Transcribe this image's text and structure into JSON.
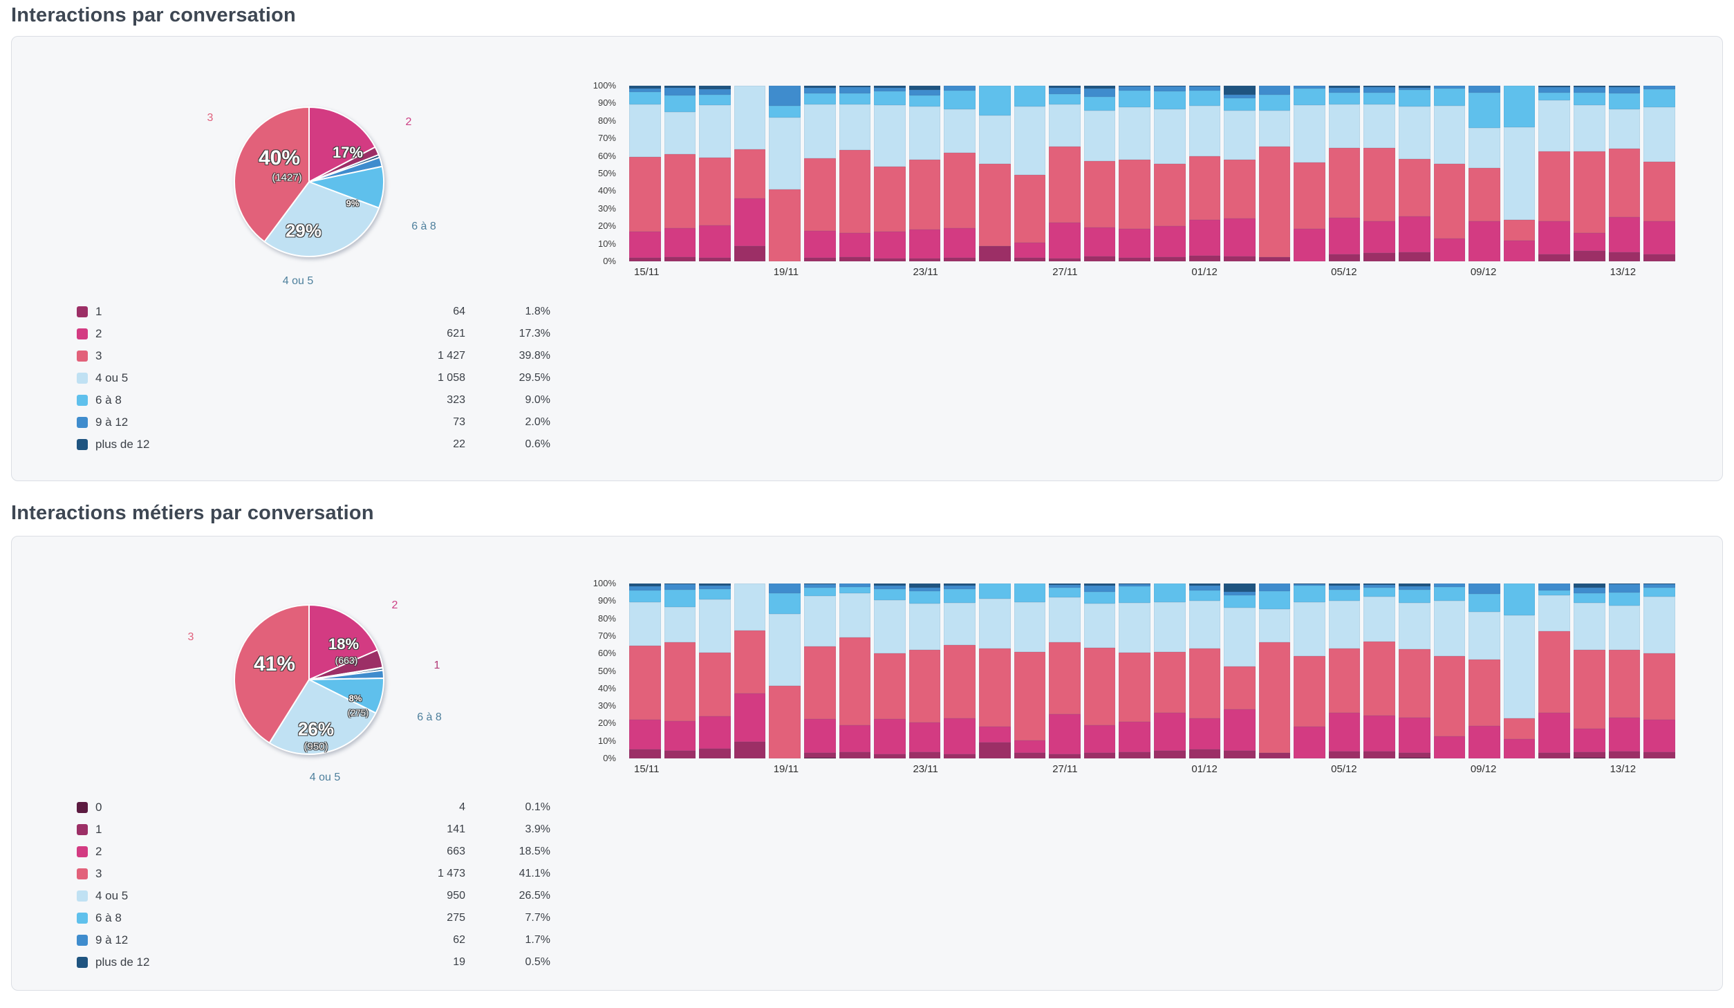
{
  "colors": {
    "categories": {
      "0": "#5c1b41",
      "1": "#9c2f66",
      "2": "#d33b82",
      "3": "#e2617a",
      "4 ou 5": "#c0e1f3",
      "6 à 8": "#5fc0ec",
      "9 à 12": "#3f8ccd",
      "plus de 12": "#1f5480"
    },
    "card_bg": "#f6f7f9",
    "card_border": "#dbdee4",
    "title_text": "#3e4753",
    "outer_label_blue": "#4d7f9c"
  },
  "axis": {
    "y_ticks": [
      "0%",
      "10%",
      "20%",
      "30%",
      "40%",
      "50%",
      "60%",
      "70%",
      "80%",
      "90%",
      "100%"
    ],
    "x_tick_every": 4
  },
  "panels": [
    {
      "title": "Interactions par conversation",
      "pie": {
        "inner_labels": [
          "40%",
          "(1427)",
          "17%",
          "9%",
          "29%"
        ],
        "outer_labels": [
          {
            "text": "3",
            "color": "#e0607c"
          },
          {
            "text": "2",
            "color": "#cc3e83"
          },
          {
            "text": "6 à 8",
            "color": "#4d7f9c"
          },
          {
            "text": "4 ou 5",
            "color": "#4d7f9c"
          }
        ]
      },
      "legend": {
        "rows": [
          {
            "label": "1",
            "value": "64",
            "pct": "1.8%"
          },
          {
            "label": "2",
            "value": "621",
            "pct": "17.3%"
          },
          {
            "label": "3",
            "value": "1 427",
            "pct": "39.8%"
          },
          {
            "label": "4 ou 5",
            "value": "1 058",
            "pct": "29.5%"
          },
          {
            "label": "6 à 8",
            "value": "323",
            "pct": "9.0%"
          },
          {
            "label": "9 à 12",
            "value": "73",
            "pct": "2.0%"
          },
          {
            "label": "plus de 12",
            "value": "22",
            "pct": "0.6%"
          }
        ]
      }
    },
    {
      "title": "Interactions métiers par conversation",
      "pie": {
        "inner_labels": [
          "41%",
          "18%",
          "(663)",
          "8%",
          "(275)",
          "26%",
          "(950)"
        ],
        "outer_labels": [
          {
            "text": "3",
            "color": "#e0607c"
          },
          {
            "text": "2",
            "color": "#cc3e83"
          },
          {
            "text": "1",
            "color": "#b23a76"
          },
          {
            "text": "6 à 8",
            "color": "#4d7f9c"
          },
          {
            "text": "4 ou 5",
            "color": "#4d7f9c"
          }
        ]
      },
      "legend": {
        "rows": [
          {
            "label": "0",
            "value": "4",
            "pct": "0.1%"
          },
          {
            "label": "1",
            "value": "141",
            "pct": "3.9%"
          },
          {
            "label": "2",
            "value": "663",
            "pct": "18.5%"
          },
          {
            "label": "3",
            "value": "1 473",
            "pct": "41.1%"
          },
          {
            "label": "4 ou 5",
            "value": "950",
            "pct": "26.5%"
          },
          {
            "label": "6 à 8",
            "value": "275",
            "pct": "7.7%"
          },
          {
            "label": "9 à 12",
            "value": "62",
            "pct": "1.7%"
          },
          {
            "label": "plus de 12",
            "value": "19",
            "pct": "0.5%"
          }
        ]
      }
    }
  ],
  "chart_data": [
    {
      "type": "pie",
      "title": "Interactions par conversation",
      "categories": [
        "1",
        "2",
        "3",
        "4 ou 5",
        "6 à 8",
        "9 à 12",
        "plus de 12"
      ],
      "values": [
        64,
        621,
        1427,
        1058,
        323,
        73,
        22
      ],
      "percents": [
        1.8,
        17.3,
        39.8,
        29.5,
        9.0,
        2.0,
        0.6
      ],
      "slice_order_clockwise_from_top": [
        1,
        0,
        6,
        5,
        4,
        3,
        2
      ]
    },
    {
      "type": "bar",
      "stacked": true,
      "ylim": [
        0,
        100
      ],
      "y_ticks": [
        "0%",
        "10%",
        "20%",
        "30%",
        "40%",
        "50%",
        "60%",
        "70%",
        "80%",
        "90%",
        "100%"
      ],
      "x": [
        "15/11",
        "16/11",
        "17/11",
        "18/11",
        "19/11",
        "20/11",
        "21/11",
        "22/11",
        "23/11",
        "24/11",
        "25/11",
        "26/11",
        "27/11",
        "28/11",
        "29/11",
        "30/11",
        "01/12",
        "02/12",
        "03/12",
        "04/12",
        "05/12",
        "06/12",
        "07/12",
        "08/12",
        "09/12",
        "10/12",
        "11/12",
        "12/12",
        "13/12",
        "14/12"
      ],
      "x_ticks": [
        "15/11",
        "19/11",
        "23/11",
        "27/11",
        "01/12",
        "05/12",
        "09/12",
        "13/12"
      ],
      "series": [
        {
          "name": "1",
          "values": [
            2,
            2.5,
            2,
            8.7,
            0,
            2,
            2.4,
            1.7,
            1.5,
            2,
            8.6,
            2,
            1.6,
            2.6,
            2,
            2.4,
            3.3,
            2.9,
            2.4,
            0,
            3.9,
            4.6,
            5.2,
            0,
            0,
            0,
            3.9,
            5.9,
            5.2,
            3.9
          ]
        },
        {
          "name": "2",
          "values": [
            15,
            16.5,
            18.5,
            27.3,
            0,
            15.5,
            13.8,
            15.2,
            16.7,
            17,
            0,
            8.5,
            20.5,
            16.8,
            16.6,
            17.5,
            20.3,
            21.4,
            0,
            18.4,
            21,
            18.3,
            20.3,
            13.1,
            22.9,
            11.8,
            19,
            10.4,
            19.9,
            19
          ]
        },
        {
          "name": "3",
          "values": [
            42.5,
            42,
            38.5,
            27.7,
            41,
            41,
            47.1,
            36.9,
            39.6,
            42.8,
            46.9,
            38.8,
            43.4,
            37.7,
            39.4,
            35.5,
            36.1,
            33.4,
            63,
            38,
            39.7,
            41.8,
            32.7,
            42.5,
            30.1,
            11.7,
            39.8,
            46.2,
            38.9,
            34
          ]
        },
        {
          "name": "4 ou 5",
          "values": [
            30,
            24,
            30,
            36.3,
            41,
            31,
            25.9,
            35,
            30.3,
            24.8,
            27.7,
            38.9,
            23.7,
            28.8,
            29.7,
            31.2,
            28.9,
            28.2,
            20.5,
            32.6,
            24.9,
            24.5,
            30,
            33,
            22.9,
            53,
            29.1,
            26.4,
            22.5,
            31.1
          ]
        },
        {
          "name": "6 à 8",
          "values": [
            7,
            9.5,
            6,
            0,
            6.5,
            6,
            6.6,
            7.9,
            6.3,
            10.8,
            16.8,
            11.8,
            6.2,
            7.9,
            9.4,
            10.3,
            8.5,
            7,
            9.1,
            9.4,
            6.5,
            6.9,
            9.6,
            9.7,
            20.2,
            23.5,
            4.3,
            7.2,
            9.2,
            9.9
          ]
        },
        {
          "name": "9 à 12",
          "values": [
            2,
            4.5,
            3,
            0,
            11.5,
            3.3,
            3.5,
            2.2,
            3.2,
            2.6,
            0,
            0,
            3.6,
            4.6,
            2.4,
            2.8,
            2.4,
            2.2,
            5,
            1.6,
            3,
            3.3,
            1.2,
            1.7,
            3.9,
            0,
            3,
            3.3,
            3.7,
            2.1
          ]
        },
        {
          "name": "plus de 12",
          "values": [
            1.5,
            1,
            2,
            0,
            0,
            1.2,
            0.7,
            1.1,
            2.4,
            0,
            0,
            0,
            1,
            1.6,
            0.5,
            0.3,
            0.5,
            4.9,
            0,
            0,
            1,
            0.6,
            1,
            0,
            0,
            0,
            0.9,
            0.6,
            0.6,
            0
          ]
        }
      ]
    },
    {
      "type": "pie",
      "title": "Interactions métiers par conversation",
      "categories": [
        "0",
        "1",
        "2",
        "3",
        "4 ou 5",
        "6 à 8",
        "9 à 12",
        "plus de 12"
      ],
      "values": [
        4,
        141,
        663,
        1473,
        950,
        275,
        62,
        19
      ],
      "percents": [
        0.1,
        3.9,
        18.5,
        41.1,
        26.5,
        7.7,
        1.7,
        0.5
      ],
      "slice_order_clockwise_from_top": [
        2,
        1,
        0,
        7,
        6,
        5,
        4,
        3
      ]
    },
    {
      "type": "bar",
      "stacked": true,
      "ylim": [
        0,
        100
      ],
      "y_ticks": [
        "0%",
        "10%",
        "20%",
        "30%",
        "40%",
        "50%",
        "60%",
        "70%",
        "80%",
        "90%",
        "100%"
      ],
      "x": [
        "15/11",
        "16/11",
        "17/11",
        "18/11",
        "19/11",
        "20/11",
        "21/11",
        "22/11",
        "23/11",
        "24/11",
        "25/11",
        "26/11",
        "27/11",
        "28/11",
        "29/11",
        "30/11",
        "01/12",
        "02/12",
        "03/12",
        "04/12",
        "05/12",
        "06/12",
        "07/12",
        "08/12",
        "09/12",
        "10/12",
        "11/12",
        "12/12",
        "13/12",
        "14/12"
      ],
      "x_ticks": [
        "15/11",
        "19/11",
        "23/11",
        "27/11",
        "01/12",
        "05/12",
        "09/12",
        "13/12"
      ],
      "series": [
        {
          "name": "0",
          "values": [
            0,
            0,
            0,
            0,
            0,
            0.5,
            0,
            0,
            0,
            0,
            0,
            0,
            0,
            0,
            0,
            0,
            0,
            0,
            0,
            0,
            0,
            0,
            0.5,
            0,
            0,
            0,
            0,
            0.5,
            0,
            0
          ]
        },
        {
          "name": "1",
          "values": [
            5,
            4.5,
            5.5,
            9.5,
            0,
            2.5,
            3.5,
            2.5,
            3.5,
            2.5,
            9,
            3,
            2.4,
            3,
            3.7,
            4.3,
            5,
            4.3,
            3,
            0,
            4,
            4,
            2.5,
            0,
            0,
            0,
            3,
            3,
            4,
            3.5
          ]
        },
        {
          "name": "2",
          "values": [
            17,
            17,
            18.5,
            27.5,
            0,
            19.5,
            15.5,
            20,
            17,
            20.5,
            9.2,
            7.3,
            23.1,
            15.8,
            17.1,
            21.7,
            17.8,
            23.8,
            0,
            18.2,
            22,
            20.5,
            20.5,
            12.5,
            18.5,
            11,
            23,
            13.5,
            19.5,
            18.5
          ]
        },
        {
          "name": "3",
          "values": [
            42.5,
            45,
            36.5,
            36,
            41.5,
            41.5,
            50,
            37.5,
            41.5,
            42,
            44.8,
            50.7,
            41.1,
            44.5,
            39.6,
            34.7,
            40.2,
            24.4,
            63.3,
            40.2,
            37,
            42.5,
            39,
            46,
            38,
            11.8,
            46.7,
            45,
            38.5,
            38
          ]
        },
        {
          "name": "4 ou 5",
          "values": [
            25,
            20,
            30.5,
            27,
            41,
            29,
            25.5,
            30.5,
            26.5,
            24,
            28.4,
            28.4,
            25.4,
            25.4,
            28.4,
            28.7,
            27.1,
            33.6,
            18.9,
            31,
            27,
            25.5,
            26.5,
            31.5,
            27.5,
            59.2,
            20.7,
            27,
            25.5,
            32.5
          ]
        },
        {
          "name": "6 à 8",
          "values": [
            6.5,
            10,
            6,
            0,
            12,
            4.5,
            3.5,
            6.5,
            7,
            8,
            8.6,
            10.6,
            5.5,
            6.6,
            9.8,
            10.6,
            5.9,
            7.3,
            10.5,
            9.6,
            6.5,
            5,
            7.5,
            8,
            10,
            18,
            2.6,
            5.5,
            7.5,
            5
          ]
        },
        {
          "name": "9 à 12",
          "values": [
            2.5,
            3,
            2,
            0,
            5.5,
            2,
            2,
            1.7,
            2,
            2,
            0,
            0,
            1.8,
            3.7,
            1,
            0,
            3,
            2,
            4.3,
            0.7,
            2.5,
            1.8,
            2,
            2,
            6,
            0,
            4,
            3,
            4.5,
            2
          ]
        },
        {
          "name": "plus de 12",
          "values": [
            1.5,
            0.5,
            1,
            0,
            0,
            0.5,
            0,
            1.3,
            2.5,
            1,
            0,
            0,
            0.7,
            1,
            0.4,
            0,
            1,
            4.6,
            0,
            0.3,
            1,
            0.7,
            1.5,
            0,
            0,
            0,
            0,
            2.5,
            0.5,
            0.5
          ]
        }
      ]
    }
  ]
}
